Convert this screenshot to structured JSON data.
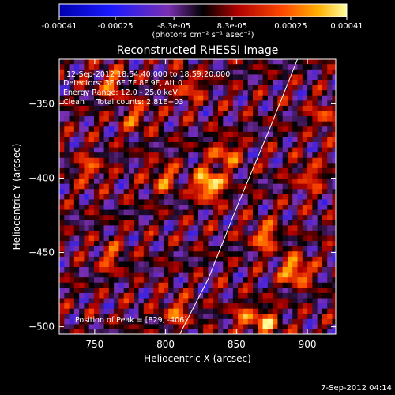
{
  "chart_data": {
    "type": "heatmap",
    "title": "Reconstructed RHESSI Image",
    "xlabel": "Heliocentric X (arcsec)",
    "ylabel": "Heliocentric Y (arcsec)",
    "xlim": [
      725,
      920
    ],
    "ylim": [
      -505,
      -320
    ],
    "x_ticks": [
      750,
      800,
      850,
      900
    ],
    "y_ticks": [
      -350,
      -400,
      -450,
      -500
    ],
    "colorbar": {
      "ticks": [
        "-0.00041",
        "-0.00025",
        "-8.3e-05",
        "8.3e-05",
        "0.00025",
        "0.00041"
      ],
      "range": [
        -0.00041,
        0.00041
      ],
      "unit_label": "(photons cm⁻² s⁻¹ asec⁻²)"
    },
    "annotations": {
      "time_range": "12-Sep-2012 18:54:40.000 to 18:59:20.000",
      "detectors": "Detectors: 3F 6F 7F 8F 9F, Att 0",
      "energy_range": "Energy Range: 12.0 - 25.0 keV",
      "clean": "Clean",
      "total_counts": "Total counts: 2.81E+03",
      "peak_position": "Position of Peak = [829, -406]"
    },
    "peak": {
      "x": 829,
      "y": -406
    },
    "limb_curve": [
      [
        810,
        -505
      ],
      [
        830,
        -468
      ],
      [
        850,
        -420
      ],
      [
        872,
        -370
      ],
      [
        893,
        -320
      ]
    ],
    "hotspots": [
      {
        "x": 829,
        "y": -406,
        "v": 1.0
      },
      {
        "x": 890,
        "y": -464,
        "v": 0.8
      },
      {
        "x": 840,
        "y": -385,
        "v": 0.55
      },
      {
        "x": 796,
        "y": -401,
        "v": 0.5
      },
      {
        "x": 868,
        "y": -441,
        "v": 0.6
      },
      {
        "x": 806,
        "y": -492,
        "v": 0.5
      },
      {
        "x": 760,
        "y": -338,
        "v": 0.5
      },
      {
        "x": 778,
        "y": -360,
        "v": 0.45
      },
      {
        "x": 745,
        "y": -395,
        "v": 0.45
      },
      {
        "x": 900,
        "y": -400,
        "v": 0.45
      },
      {
        "x": 910,
        "y": -360,
        "v": 0.4
      },
      {
        "x": 870,
        "y": -500,
        "v": 0.55
      },
      {
        "x": 760,
        "y": -455,
        "v": 0.4
      },
      {
        "x": 815,
        "y": -340,
        "v": 0.45
      },
      {
        "x": 855,
        "y": -495,
        "v": 0.45
      }
    ]
  },
  "footer": {
    "timestamp": "7-Sep-2012 04:14"
  }
}
